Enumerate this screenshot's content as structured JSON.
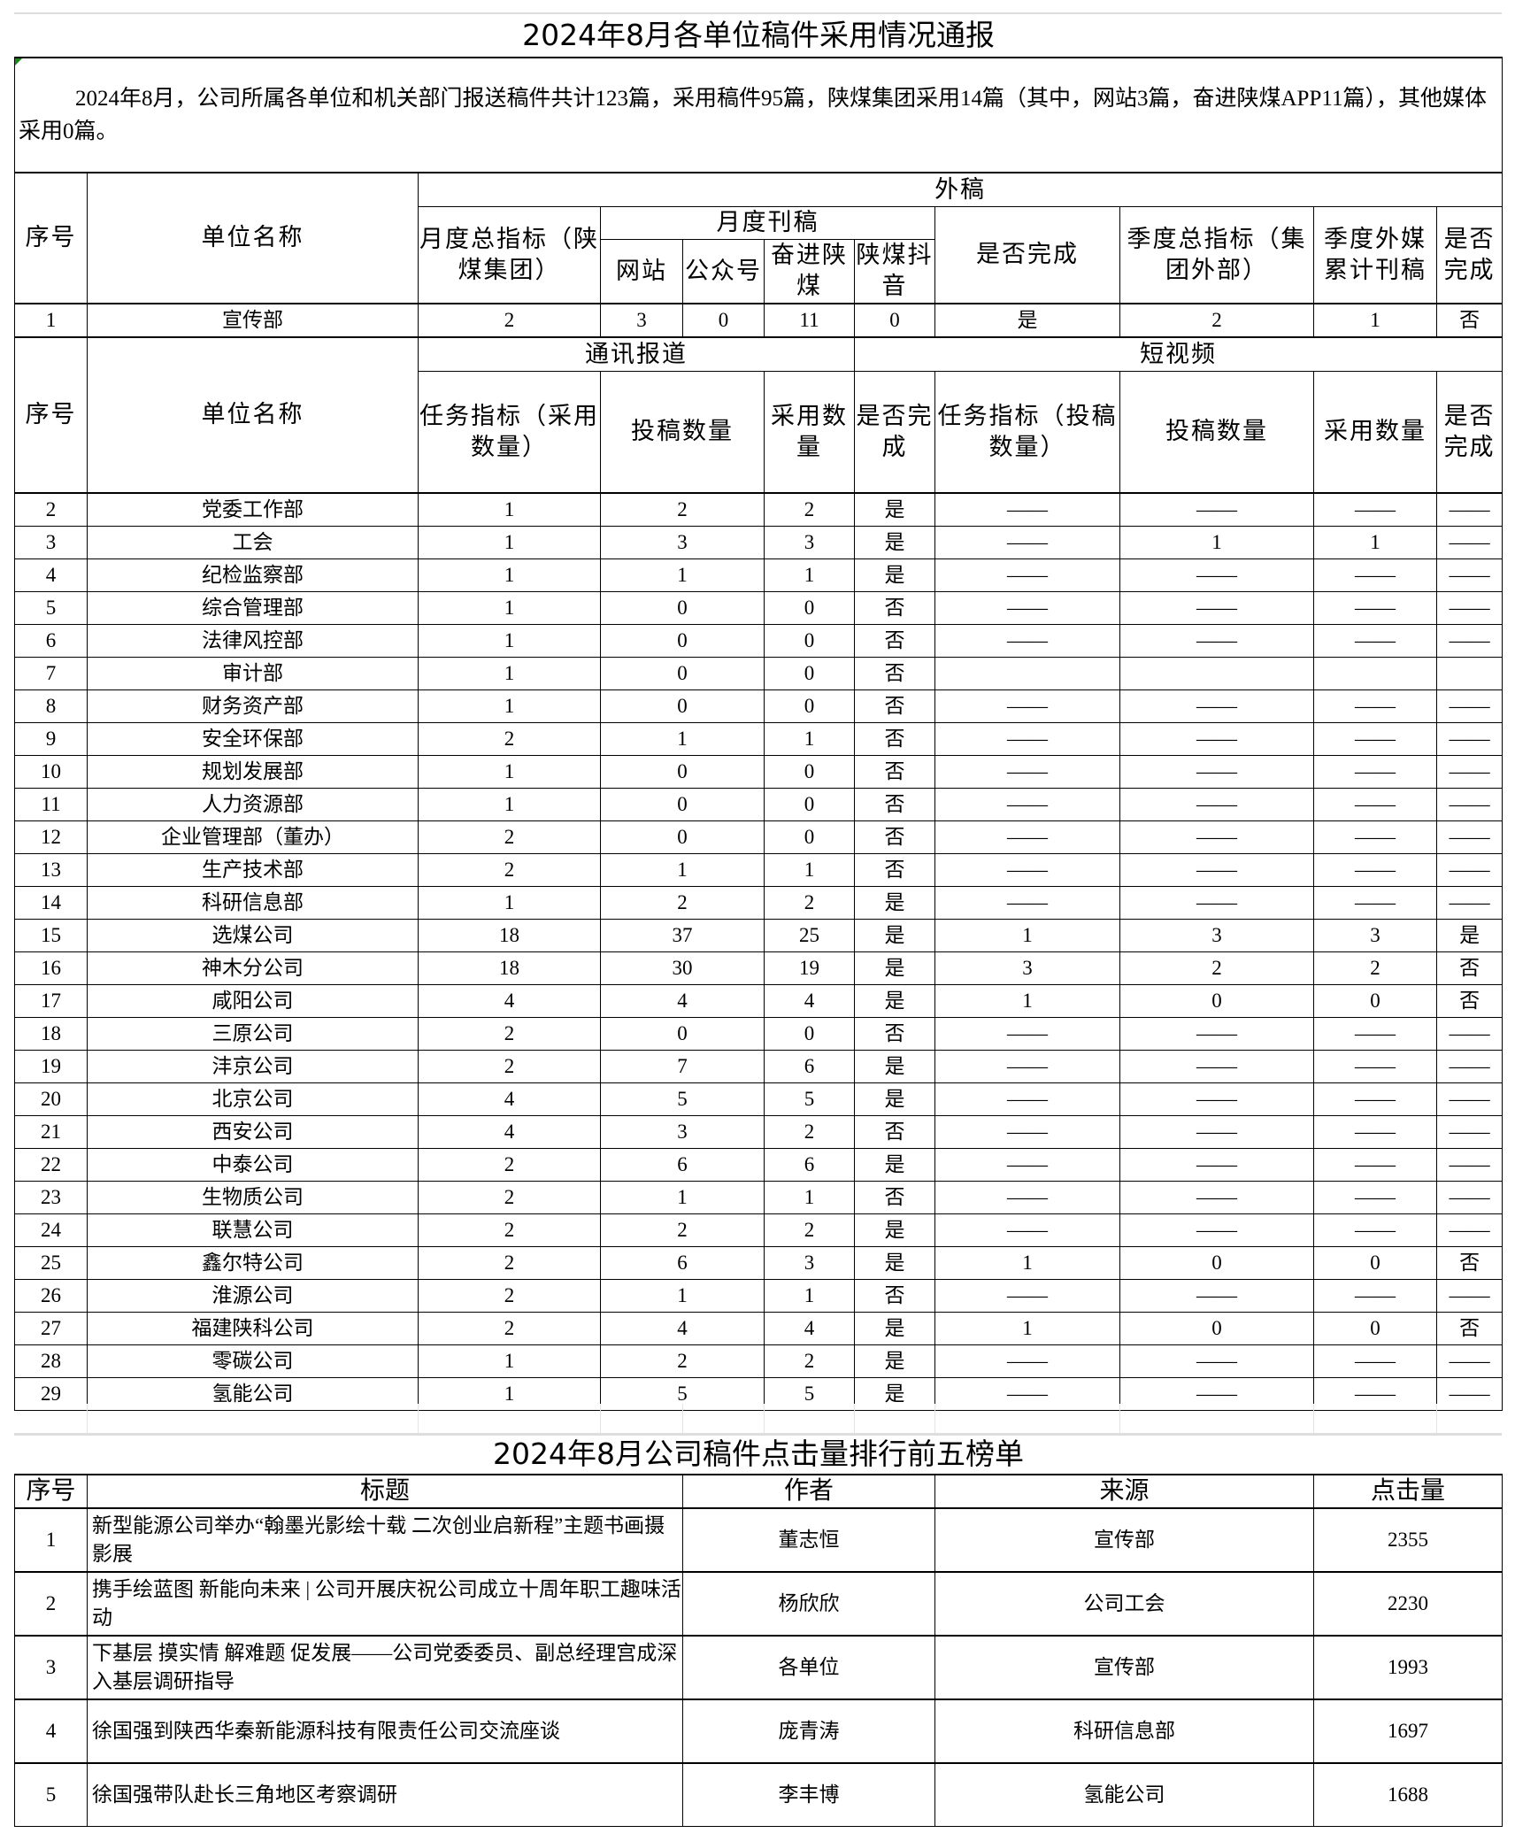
{
  "report": {
    "title": "2024年8月各单位稿件采用情况通报",
    "summary": "2024年8月，公司所属各单位和机关部门报送稿件共计123篇，采用稿件95篇，陕煤集团采用14篇（其中，网站3篇，奋进陕煤APP11篇），其他媒体采用0篇。",
    "headers": {
      "seq": "序号",
      "unit": "单位名称",
      "external": "外稿",
      "monthly_target": "月度总指标（陕煤集团）",
      "monthly_pub": "月度刊稿",
      "website": "网站",
      "wechat": "公众号",
      "fenjin": "奋进陕煤",
      "douyin": "陕煤抖音",
      "completed": "是否完成",
      "quarter_target": "季度总指标（集团外部）",
      "quarter_cum": "季度外媒累计刊稿",
      "quarter_done": "是否完成",
      "comm": "通讯报道",
      "short_video": "短视频",
      "task_adopt": "任务指标（采用数量）",
      "submitted": "投稿数量",
      "adopted": "采用数量",
      "done": "是否完成",
      "task_submit": "任务指标（投稿数量）",
      "sv_submitted": "投稿数量",
      "sv_adopted": "采用数量",
      "sv_done": "是否完成"
    },
    "external_row": [
      "1",
      "宣传部",
      "2",
      "3",
      "0",
      "11",
      "0",
      "是",
      "2",
      "1",
      "否"
    ],
    "rows": [
      [
        "2",
        "党委工作部",
        "1",
        "2",
        "2",
        "是",
        "——",
        "——",
        "——",
        "——"
      ],
      [
        "3",
        "工会",
        "1",
        "3",
        "3",
        "是",
        "——",
        "1",
        "1",
        "——"
      ],
      [
        "4",
        "纪检监察部",
        "1",
        "1",
        "1",
        "是",
        "——",
        "——",
        "——",
        "——"
      ],
      [
        "5",
        "综合管理部",
        "1",
        "0",
        "0",
        "否",
        "——",
        "——",
        "——",
        "——"
      ],
      [
        "6",
        "法律风控部",
        "1",
        "0",
        "0",
        "否",
        "——",
        "——",
        "——",
        "——"
      ],
      [
        "7",
        "审计部",
        "1",
        "0",
        "0",
        "否",
        "",
        "",
        "",
        ""
      ],
      [
        "8",
        "财务资产部",
        "1",
        "0",
        "0",
        "否",
        "——",
        "——",
        "——",
        "——"
      ],
      [
        "9",
        "安全环保部",
        "2",
        "1",
        "1",
        "否",
        "——",
        "——",
        "——",
        "——"
      ],
      [
        "10",
        "规划发展部",
        "1",
        "0",
        "0",
        "否",
        "——",
        "——",
        "——",
        "——"
      ],
      [
        "11",
        "人力资源部",
        "1",
        "0",
        "0",
        "否",
        "——",
        "——",
        "——",
        "——"
      ],
      [
        "12",
        "企业管理部（董办）",
        "2",
        "0",
        "0",
        "否",
        "——",
        "——",
        "——",
        "——"
      ],
      [
        "13",
        "生产技术部",
        "2",
        "1",
        "1",
        "否",
        "——",
        "——",
        "——",
        "——"
      ],
      [
        "14",
        "科研信息部",
        "1",
        "2",
        "2",
        "是",
        "——",
        "——",
        "——",
        "——"
      ],
      [
        "15",
        "选煤公司",
        "18",
        "37",
        "25",
        "是",
        "1",
        "3",
        "3",
        "是"
      ],
      [
        "16",
        "神木分公司",
        "18",
        "30",
        "19",
        "是",
        "3",
        "2",
        "2",
        "否"
      ],
      [
        "17",
        "咸阳公司",
        "4",
        "4",
        "4",
        "是",
        "1",
        "0",
        "0",
        "否"
      ],
      [
        "18",
        "三原公司",
        "2",
        "0",
        "0",
        "否",
        "——",
        "——",
        "——",
        "——"
      ],
      [
        "19",
        "沣京公司",
        "2",
        "7",
        "6",
        "是",
        "——",
        "——",
        "——",
        "——"
      ],
      [
        "20",
        "北京公司",
        "4",
        "5",
        "5",
        "是",
        "——",
        "——",
        "——",
        "——"
      ],
      [
        "21",
        "西安公司",
        "4",
        "3",
        "2",
        "否",
        "——",
        "——",
        "——",
        "——"
      ],
      [
        "22",
        "中泰公司",
        "2",
        "6",
        "6",
        "是",
        "——",
        "——",
        "——",
        "——"
      ],
      [
        "23",
        "生物质公司",
        "2",
        "1",
        "1",
        "否",
        "——",
        "——",
        "——",
        "——"
      ],
      [
        "24",
        "联慧公司",
        "2",
        "2",
        "2",
        "是",
        "——",
        "——",
        "——",
        "——"
      ],
      [
        "25",
        "鑫尔特公司",
        "2",
        "6",
        "3",
        "是",
        "1",
        "0",
        "0",
        "否"
      ],
      [
        "26",
        "淮源公司",
        "2",
        "1",
        "1",
        "否",
        "——",
        "——",
        "——",
        "——"
      ],
      [
        "27",
        "福建陕科公司",
        "2",
        "4",
        "4",
        "是",
        "1",
        "0",
        "0",
        "否"
      ],
      [
        "28",
        "零碳公司",
        "1",
        "2",
        "2",
        "是",
        "——",
        "——",
        "——",
        "——"
      ],
      [
        "29",
        "氢能公司",
        "1",
        "5",
        "5",
        "是",
        "——",
        "——",
        "——",
        "——"
      ]
    ]
  },
  "ranking": {
    "title": "2024年8月公司稿件点击量排行前五榜单",
    "headers": [
      "序号",
      "标题",
      "作者",
      "来源",
      "点击量"
    ],
    "rows": [
      [
        "1",
        "新型能源公司举办“翰墨光影绘十载 二次创业启新程”主题书画摄影展",
        "董志恒",
        "宣传部",
        "2355"
      ],
      [
        "2",
        "携手绘蓝图 新能向未来 | 公司开展庆祝公司成立十周年职工趣味活动",
        "杨欣欣",
        "公司工会",
        "2230"
      ],
      [
        "3",
        "下基层 摸实情 解难题 促发展——公司党委委员、副总经理宫成深入基层调研指导",
        "各单位",
        "宣传部",
        "1993"
      ],
      [
        "4",
        "徐国强到陕西华秦新能源科技有限责任公司交流座谈",
        "庞青涛",
        "科研信息部",
        "1697"
      ],
      [
        "5",
        "徐国强带队赴长三角地区考察调研",
        "李丰博",
        "氢能公司",
        "1688"
      ]
    ]
  }
}
